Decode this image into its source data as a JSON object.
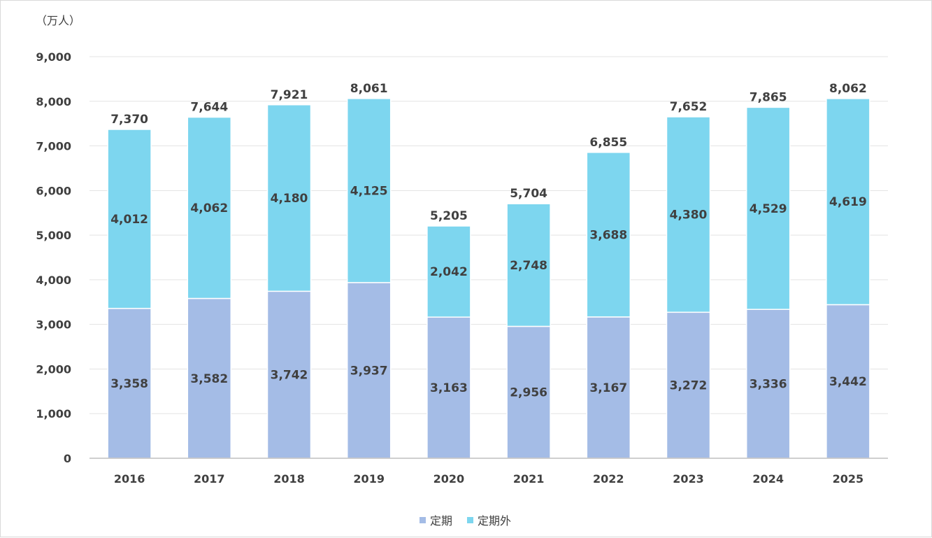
{
  "chart_data": {
    "type": "bar",
    "stacked": true,
    "unit_label": "（万人）",
    "categories": [
      "2016",
      "2017",
      "2018",
      "2019",
      "2020",
      "2021",
      "2022",
      "2023",
      "2024",
      "2025"
    ],
    "series": [
      {
        "name": "定期",
        "color": "#a4bce6",
        "values": [
          3358,
          3582,
          3742,
          3937,
          3163,
          2956,
          3167,
          3272,
          3336,
          3442
        ]
      },
      {
        "name": "定期外",
        "color": "#7dd6ef",
        "values": [
          4012,
          4062,
          4180,
          4125,
          2042,
          2748,
          3688,
          4380,
          4529,
          4619
        ]
      }
    ],
    "totals": [
      7370,
      7644,
      7921,
      8061,
      5205,
      5704,
      6855,
      7652,
      7865,
      8062
    ],
    "ylim": [
      0,
      9000
    ],
    "yticks": [
      0,
      1000,
      2000,
      3000,
      4000,
      5000,
      6000,
      7000,
      8000,
      9000
    ],
    "ytick_labels": [
      "0",
      "1,000",
      "2,000",
      "3,000",
      "4,000",
      "5,000",
      "6,000",
      "7,000",
      "8,000",
      "9,000"
    ],
    "grid": true,
    "legend": "bottom-center"
  }
}
